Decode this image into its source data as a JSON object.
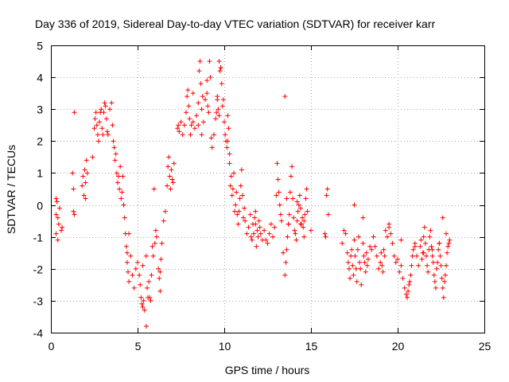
{
  "chart_data": {
    "type": "scatter",
    "title": "Day 336 of 2019, Sidereal Day-to-day VTEC variation (SDTVAR) for receiver karr",
    "xlabel": "GPS time / hours",
    "ylabel": "SDTVAR / TECUs",
    "xlim": [
      0,
      25
    ],
    "ylim": [
      -4,
      5
    ],
    "xticks": [
      0,
      5,
      10,
      15,
      20,
      25
    ],
    "yticks": [
      -4,
      -3,
      -2,
      -1,
      0,
      1,
      2,
      3,
      4,
      5
    ],
    "grid": true,
    "marker": "plus",
    "color": "#ff0000",
    "series": [
      {
        "name": "SDTVAR",
        "x": [
          0.3,
          0.3,
          0.3,
          0.35,
          0.4,
          0.4,
          0.45,
          0.5,
          0.6,
          0.65,
          1.25,
          1.3,
          1.3,
          1.35,
          1.35,
          1.8,
          1.85,
          1.9,
          1.95,
          2.0,
          2.0,
          2.05,
          2.1,
          2.4,
          2.5,
          2.55,
          2.6,
          2.65,
          2.7,
          2.75,
          2.8,
          2.85,
          2.9,
          2.95,
          3.0,
          3.05,
          3.1,
          3.15,
          3.2,
          3.25,
          3.3,
          3.4,
          3.5,
          3.55,
          3.6,
          3.65,
          3.7,
          3.75,
          3.8,
          3.85,
          3.9,
          3.95,
          4.0,
          4.05,
          4.1,
          4.15,
          4.2,
          4.25,
          4.3,
          4.35,
          4.4,
          4.45,
          4.5,
          4.6,
          4.7,
          4.8,
          4.9,
          5.0,
          5.1,
          5.15,
          5.2,
          5.25,
          5.3,
          5.35,
          5.4,
          5.5,
          5.55,
          5.65,
          5.7,
          5.75,
          5.8,
          5.85,
          5.9,
          5.95,
          6.0,
          6.05,
          6.1,
          6.2,
          6.25,
          6.3,
          6.35,
          6.4,
          6.5,
          6.6,
          6.7,
          6.75,
          6.8,
          6.85,
          6.9,
          6.95,
          7.0,
          7.05,
          7.1,
          7.3,
          7.35,
          7.4,
          7.5,
          7.6,
          7.7,
          7.8,
          7.85,
          7.9,
          7.95,
          8.0,
          8.05,
          8.1,
          8.2,
          8.3,
          8.4,
          8.5,
          8.55,
          8.6,
          8.65,
          8.7,
          8.75,
          8.8,
          8.9,
          9.0,
          9.05,
          9.1,
          9.15,
          9.2,
          9.25,
          9.3,
          9.4,
          9.5,
          9.55,
          9.6,
          9.65,
          9.7,
          9.75,
          9.8,
          9.85,
          9.9,
          9.95,
          10.0,
          10.05,
          10.1,
          10.15,
          10.2,
          10.25,
          10.3,
          10.35,
          10.4,
          10.45,
          10.5,
          10.55,
          10.6,
          10.65,
          10.7,
          10.75,
          10.8,
          10.85,
          10.9,
          10.95,
          11.0,
          11.05,
          11.1,
          11.15,
          11.2,
          11.3,
          11.4,
          11.5,
          11.55,
          11.6,
          11.65,
          11.7,
          11.75,
          11.8,
          11.85,
          11.9,
          11.95,
          12.0,
          12.05,
          12.1,
          12.2,
          12.3,
          12.5,
          12.6,
          12.7,
          12.8,
          12.9,
          13.0,
          13.05,
          13.1,
          13.15,
          13.2,
          13.25,
          13.3,
          13.4,
          13.5,
          13.55,
          13.6,
          13.65,
          13.7,
          13.75,
          13.8,
          13.85,
          13.9,
          13.95,
          14.0,
          14.05,
          14.1,
          14.15,
          14.2,
          14.25,
          14.3,
          14.35,
          14.4,
          14.45,
          14.5,
          14.55,
          14.6,
          14.65,
          14.7,
          14.75,
          14.8,
          15.8,
          15.85,
          15.9,
          15.95,
          16.8,
          16.9,
          17.0,
          17.1,
          17.15,
          17.2,
          17.25,
          17.3,
          17.35,
          17.4,
          17.45,
          17.5,
          17.55,
          17.6,
          17.65,
          17.7,
          17.75,
          17.8,
          17.85,
          17.9,
          18.0,
          18.05,
          18.1,
          18.15,
          18.2,
          18.25,
          18.3,
          18.4,
          18.6,
          18.7,
          18.8,
          18.9,
          19.0,
          19.05,
          19.1,
          19.15,
          19.2,
          19.25,
          19.3,
          19.4,
          19.5,
          19.6,
          19.7,
          19.8,
          19.9,
          20.0,
          20.1,
          20.2,
          20.3,
          20.4,
          20.5,
          20.55,
          20.6,
          20.65,
          20.7,
          20.75,
          20.8,
          20.85,
          20.9,
          21.0,
          21.1,
          21.2,
          21.3,
          21.35,
          21.4,
          21.45,
          21.5,
          21.55,
          21.6,
          21.65,
          21.7,
          21.75,
          21.8,
          21.85,
          21.9,
          21.95,
          22.0,
          22.05,
          22.1,
          22.15,
          22.2,
          22.25,
          22.3,
          22.35,
          22.4,
          22.45,
          22.5,
          22.55,
          22.6,
          22.65,
          22.7,
          22.75,
          22.8,
          22.85,
          22.9,
          22.95,
          23.0,
          4.4,
          4.5,
          5.3,
          5.5,
          5.6,
          6.3,
          8.2,
          8.5,
          8.7,
          9.0,
          9.6,
          9.7,
          9.8,
          10.2,
          10.3,
          11.8,
          12.4,
          13.5,
          13.6,
          13.7,
          14.2,
          14.4,
          14.6,
          15.0,
          16.0,
          17.5,
          18.0,
          18.5,
          19.5,
          20.2,
          21.0,
          21.5,
          22.0,
          22.4,
          22.6,
          22.8
        ],
        "y": [
          0.2,
          -0.3,
          -0.9,
          0.1,
          -0.4,
          -1.1,
          -0.6,
          -0.1,
          -0.8,
          -0.7,
          1.0,
          0.5,
          -0.2,
          2.9,
          -0.3,
          0.6,
          0.9,
          0.3,
          1.1,
          0.2,
          0.7,
          1.4,
          1.0,
          1.5,
          2.4,
          2.7,
          2.9,
          2.5,
          2.2,
          2.0,
          2.6,
          2.9,
          3.0,
          2.4,
          2.2,
          2.9,
          3.2,
          3.1,
          2.7,
          2.3,
          2.2,
          3.0,
          3.2,
          2.5,
          2.0,
          1.8,
          1.4,
          1.6,
          1.0,
          0.7,
          0.9,
          0.5,
          1.2,
          0.2,
          0.4,
          0.9,
          0.0,
          -0.4,
          -0.9,
          -1.3,
          -1.8,
          -2.1,
          -2.4,
          -1.6,
          -2.2,
          -2.6,
          -2.0,
          -1.8,
          -2.2,
          -2.5,
          -2.9,
          -3.1,
          -3.2,
          -3.0,
          -3.3,
          -3.8,
          -2.6,
          -2.4,
          -2.9,
          -3.0,
          -2.2,
          -1.3,
          -1.6,
          0.5,
          -1.2,
          -0.8,
          -1.0,
          -2.0,
          -2.3,
          -2.1,
          -1.7,
          -1.2,
          -0.5,
          -0.2,
          0.6,
          1.2,
          1.5,
          0.9,
          0.5,
          1.1,
          0.8,
          0.7,
          1.3,
          2.4,
          2.5,
          2.3,
          2.6,
          2.2,
          2.5,
          2.9,
          3.4,
          3.6,
          3.1,
          2.7,
          2.2,
          2.5,
          2.6,
          2.4,
          2.8,
          3.2,
          4.2,
          4.5,
          3.8,
          3.0,
          3.4,
          2.6,
          3.3,
          3.5,
          3.1,
          2.9,
          4.5,
          4.0,
          2.1,
          1.8,
          2.2,
          2.7,
          2.9,
          3.4,
          3.0,
          4.5,
          4.2,
          4.3,
          3.8,
          3.1,
          3.3,
          2.6,
          2.2,
          2.0,
          1.8,
          2.8,
          2.4,
          1.3,
          0.6,
          0.9,
          0.3,
          0.5,
          1.0,
          -0.2,
          0.0,
          0.4,
          -0.3,
          -0.6,
          -0.2,
          0.2,
          0.6,
          1.1,
          0.3,
          -0.4,
          -0.1,
          -0.5,
          -0.9,
          -0.7,
          -0.3,
          -1.0,
          -1.1,
          -0.6,
          -0.9,
          -0.4,
          -0.2,
          -1.3,
          -0.8,
          -1.0,
          -0.5,
          -0.7,
          -0.9,
          -1.1,
          -0.8,
          -1.2,
          -0.9,
          -0.6,
          -1.0,
          -0.7,
          0.3,
          1.3,
          0.8,
          0.4,
          0.0,
          -0.3,
          -0.5,
          -1.5,
          -2.2,
          -1.8,
          -1.4,
          -1.0,
          -0.6,
          -0.3,
          0.4,
          0.9,
          1.2,
          0.2,
          -0.4,
          -0.8,
          -0.9,
          -1.1,
          -0.5,
          -0.2,
          0.0,
          0.3,
          -0.1,
          -0.6,
          -0.4,
          -0.7,
          -1.0,
          -0.3,
          0.2,
          0.5,
          -0.2,
          -0.9,
          -1.0,
          0.3,
          0.5,
          -1.2,
          -0.8,
          -0.9,
          -1.5,
          -1.8,
          -2.0,
          -2.3,
          -1.6,
          -1.4,
          -1.9,
          -2.2,
          -1.1,
          -1.6,
          -2.0,
          -2.4,
          -1.4,
          -1.0,
          -1.8,
          -2.0,
          -2.5,
          -1.2,
          -1.6,
          -1.8,
          -2.1,
          -1.5,
          -1.9,
          -1.7,
          -1.3,
          -1.0,
          -1.3,
          -1.6,
          -2.0,
          -1.8,
          -1.5,
          -1.9,
          -2.1,
          -1.4,
          -1.6,
          -0.8,
          -1.0,
          -0.7,
          -0.9,
          -1.2,
          -1.6,
          -1.8,
          -1.7,
          -2.1,
          -1.9,
          -2.3,
          -2.6,
          -2.8,
          -2.9,
          -2.7,
          -2.5,
          -2.4,
          -2.2,
          -1.9,
          -1.6,
          -1.4,
          -1.2,
          -1.6,
          -1.9,
          -1.3,
          -1.1,
          -1.7,
          -1.5,
          -1.0,
          -0.7,
          -1.2,
          -1.6,
          -1.9,
          -2.1,
          -1.4,
          -1.0,
          -0.8,
          -1.3,
          -1.6,
          -1.8,
          -2.2,
          -2.4,
          -2.6,
          -2.0,
          -1.8,
          -1.4,
          -1.2,
          -1.6,
          -1.9,
          -2.3,
          -2.6,
          -2.9,
          -2.4,
          -2.2,
          -1.9,
          -1.5,
          -1.3,
          -1.2,
          -1.1,
          -1.5,
          -0.9,
          -1.9,
          -1.6,
          -2.9,
          -2.7,
          3.5,
          2.5,
          2.2,
          3.9,
          3.3,
          2.8,
          4.3,
          2.0,
          1.6,
          -0.6,
          -1.1,
          3.4,
          0.2,
          -0.6,
          0.1,
          -0.6,
          -0.5,
          -0.8,
          -0.3,
          0.0,
          -0.4,
          -1.4,
          -0.6,
          -1.1,
          -1.3,
          -1.5,
          -1.4,
          -1.2,
          -0.4,
          -0.9
        ]
      }
    ]
  }
}
